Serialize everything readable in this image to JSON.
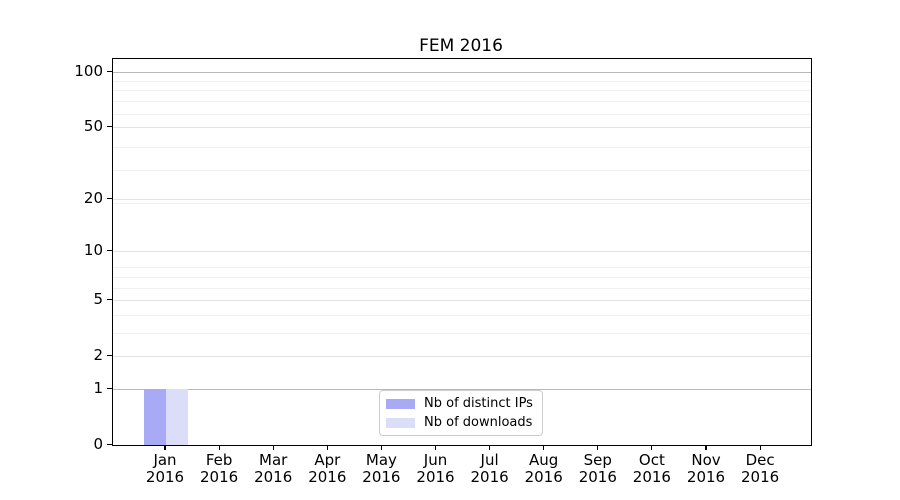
{
  "chart_data": {
    "type": "bar",
    "title": "FEM 2016",
    "year": "2016",
    "months": [
      "Jan",
      "Feb",
      "Mar",
      "Apr",
      "May",
      "Jun",
      "Jul",
      "Aug",
      "Sep",
      "Oct",
      "Nov",
      "Dec"
    ],
    "series": [
      {
        "name": "Nb of distinct IPs",
        "color": "#a9aaf5",
        "values": [
          1,
          0,
          0,
          0,
          0,
          0,
          0,
          0,
          0,
          0,
          0,
          0
        ]
      },
      {
        "name": "Nb of downloads",
        "color": "#dcddf9",
        "values": [
          1,
          0,
          0,
          0,
          0,
          0,
          0,
          0,
          0,
          0,
          0,
          0
        ]
      }
    ],
    "y_ticks": [
      0,
      1,
      2,
      5,
      10,
      20,
      50,
      100
    ],
    "y_strong_grid_ticks": [
      1,
      100
    ],
    "y_minor_grid_values": [
      3,
      4,
      6,
      7,
      8,
      19,
      29,
      39,
      59,
      69,
      79,
      89
    ],
    "y_scale": "log10(value+1)",
    "y_max": 117,
    "xlabel": "",
    "ylabel": "",
    "grid": "horizontal-only",
    "legend_position": "lower center",
    "colors": {
      "strong_grid": "#b9b9b9",
      "major_grid": "#e3e3e3",
      "minor_grid": "#f0f0f0",
      "axis": "#000000",
      "legend_border": "#cccccc",
      "background": "#ffffff"
    }
  }
}
